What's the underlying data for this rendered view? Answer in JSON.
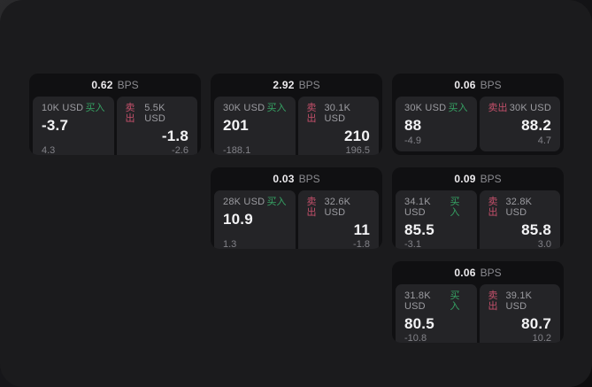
{
  "labels": {
    "bps_unit": "BPS",
    "buy": "买入",
    "sell": "卖出"
  },
  "colors": {
    "buy": "#36a364",
    "sell": "#c4506b",
    "page_bg": "#1b1b1d",
    "card_bg": "#101012",
    "panel_bg": "#242427"
  },
  "cards": [
    {
      "pos": "r1c1",
      "bps": "0.62",
      "buy": {
        "size": "10K USD",
        "value": "-3.7",
        "change": "4.3"
      },
      "sell": {
        "size": "5.5K USD",
        "value": "-1.8",
        "change": "-2.6"
      }
    },
    {
      "pos": "r1c2",
      "bps": "2.92",
      "buy": {
        "size": "30K USD",
        "value": "201",
        "change": "-188.1"
      },
      "sell": {
        "size": "30.1K USD",
        "value": "210",
        "change": "196.5"
      }
    },
    {
      "pos": "r1c3",
      "bps": "0.06",
      "buy": {
        "size": "30K USD",
        "value": "88",
        "change": "-4.9"
      },
      "sell": {
        "size": "30K USD",
        "value": "88.2",
        "change": "4.7"
      }
    },
    {
      "pos": "r2c2",
      "bps": "0.03",
      "buy": {
        "size": "28K USD",
        "value": "10.9",
        "change": "1.3"
      },
      "sell": {
        "size": "32.6K USD",
        "value": "11",
        "change": "-1.8"
      }
    },
    {
      "pos": "r2c3",
      "bps": "0.09",
      "buy": {
        "size": "34.1K USD",
        "value": "85.5",
        "change": "-3.1"
      },
      "sell": {
        "size": "32.8K USD",
        "value": "85.8",
        "change": "3.0"
      }
    },
    {
      "pos": "r3c3",
      "bps": "0.06",
      "buy": {
        "size": "31.8K USD",
        "value": "80.5",
        "change": "-10.8"
      },
      "sell": {
        "size": "39.1K USD",
        "value": "80.7",
        "change": "10.2"
      }
    }
  ]
}
